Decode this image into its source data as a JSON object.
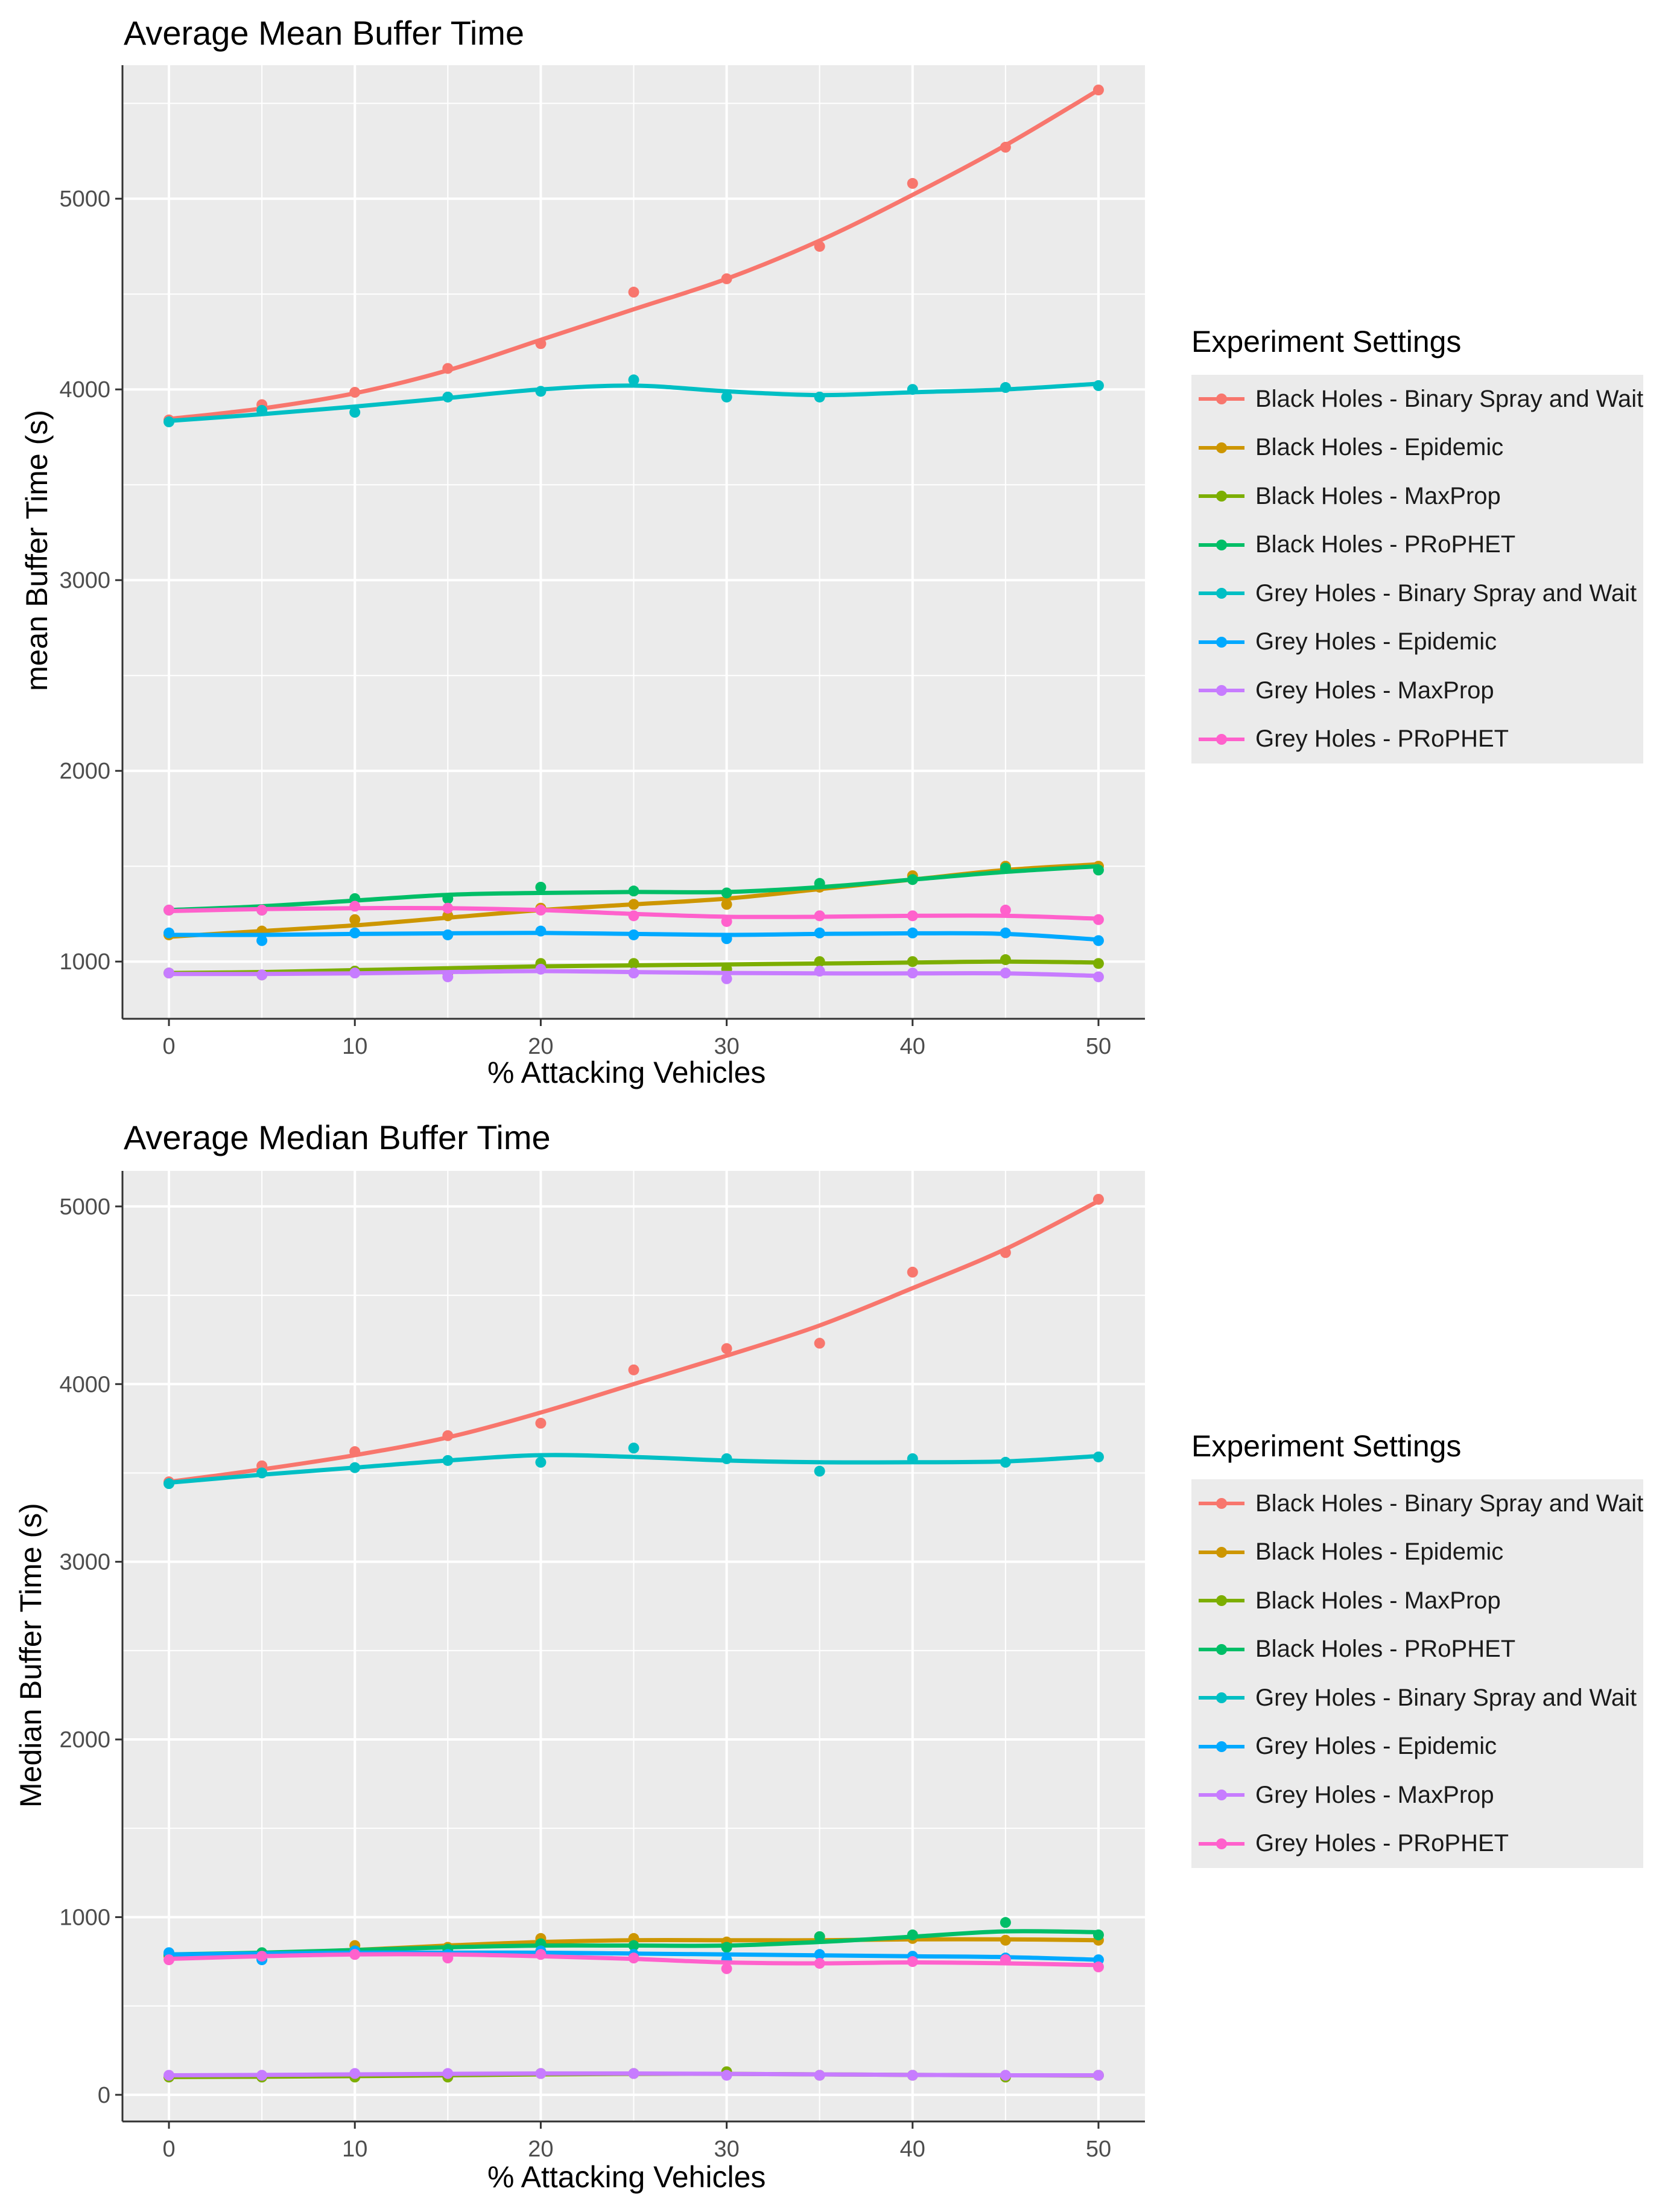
{
  "colors": {
    "series": [
      "#F8766D",
      "#CD9600",
      "#7CAE00",
      "#00BE67",
      "#00BFC4",
      "#00A9FF",
      "#C77CFF",
      "#FF61CC"
    ],
    "panel_bg": "#EBEBEB",
    "grid": "#FFFFFF"
  },
  "legend": {
    "title": "Experiment Settings",
    "labels": [
      "Black Holes - Binary Spray and Wait",
      "Black Holes - Epidemic",
      "Black Holes - MaxProp",
      "Black Holes - PRoPHET",
      "Grey Holes - Binary Spray and Wait",
      "Grey Holes - Epidemic",
      "Grey Holes - MaxProp",
      "Grey Holes - PRoPHET"
    ]
  },
  "chart_data": [
    {
      "type": "scatter",
      "title": "Average Mean Buffer Time",
      "xlabel": "% Attacking Vehicles",
      "ylabel": "mean Buffer Time (s)",
      "xlim": [
        -2.5,
        52.5
      ],
      "ylim": [
        700,
        5700
      ],
      "x_ticks": [
        0,
        10,
        20,
        30,
        40,
        50
      ],
      "x_tick_labels": [
        "0",
        "10",
        "20",
        "30",
        "40",
        "50"
      ],
      "y_ticks": [
        1000,
        2000,
        3000,
        4000,
        5000
      ],
      "y_tick_labels": [
        "1000",
        "2000",
        "3000",
        "4000",
        "5000"
      ],
      "x": [
        0,
        5,
        10,
        15,
        20,
        25,
        30,
        35,
        40,
        45,
        50
      ],
      "series": [
        {
          "name": "Black Holes - Binary Spray and Wait",
          "values": [
            3840,
            3920,
            3985,
            4110,
            4240,
            4510,
            4580,
            4750,
            5080,
            5270,
            5570
          ],
          "fit": [
            3845,
            3900,
            3980,
            4100,
            4260,
            4420,
            4580,
            4780,
            5020,
            5280,
            5570
          ]
        },
        {
          "name": "Black Holes - Epidemic",
          "values": [
            1140,
            1160,
            1220,
            1240,
            1280,
            1300,
            1300,
            1390,
            1450,
            1500,
            1500
          ],
          "fit": [
            1130,
            1160,
            1190,
            1230,
            1270,
            1300,
            1330,
            1380,
            1430,
            1480,
            1510
          ]
        },
        {
          "name": "Black Holes - MaxProp",
          "values": [
            940,
            930,
            950,
            940,
            990,
            990,
            960,
            1000,
            1000,
            1010,
            990
          ],
          "fit": [
            940,
            945,
            955,
            965,
            975,
            980,
            985,
            990,
            995,
            1000,
            995
          ]
        },
        {
          "name": "Black Holes - PRoPHET",
          "values": [
            1270,
            1270,
            1330,
            1330,
            1390,
            1370,
            1360,
            1410,
            1430,
            1490,
            1480
          ],
          "fit": [
            1270,
            1290,
            1320,
            1350,
            1360,
            1365,
            1365,
            1390,
            1430,
            1470,
            1500
          ]
        },
        {
          "name": "Grey Holes - Binary Spray and Wait",
          "values": [
            3830,
            3890,
            3880,
            3960,
            3990,
            4050,
            3960,
            3960,
            4000,
            4010,
            4020
          ],
          "fit": [
            3835,
            3870,
            3910,
            3955,
            4000,
            4020,
            3990,
            3970,
            3985,
            4000,
            4030
          ]
        },
        {
          "name": "Grey Holes - Epidemic",
          "values": [
            1150,
            1110,
            1150,
            1140,
            1160,
            1140,
            1120,
            1150,
            1150,
            1150,
            1110
          ],
          "fit": [
            1140,
            1140,
            1145,
            1148,
            1150,
            1145,
            1140,
            1145,
            1148,
            1145,
            1115
          ]
        },
        {
          "name": "Grey Holes - MaxProp",
          "values": [
            940,
            930,
            940,
            920,
            960,
            940,
            910,
            950,
            940,
            940,
            920
          ],
          "fit": [
            935,
            935,
            938,
            945,
            950,
            945,
            940,
            938,
            938,
            938,
            925
          ]
        },
        {
          "name": "Grey Holes - PRoPHET",
          "values": [
            1270,
            1270,
            1290,
            1280,
            1270,
            1240,
            1210,
            1240,
            1240,
            1270,
            1220
          ],
          "fit": [
            1265,
            1275,
            1280,
            1280,
            1270,
            1250,
            1235,
            1235,
            1240,
            1240,
            1225
          ]
        }
      ]
    },
    {
      "type": "scatter",
      "title": "Average Median Buffer Time",
      "xlabel": "% Attacking Vehicles",
      "ylabel": "Median Buffer Time (s)",
      "xlim": [
        -2.5,
        52.5
      ],
      "ylim": [
        -150,
        5200
      ],
      "x_ticks": [
        0,
        10,
        20,
        30,
        40,
        50
      ],
      "x_tick_labels": [
        "0",
        "10",
        "20",
        "30",
        "40",
        "50"
      ],
      "y_ticks": [
        0,
        1000,
        2000,
        3000,
        4000,
        5000
      ],
      "y_tick_labels": [
        "0",
        "1000",
        "2000",
        "3000",
        "4000",
        "5000"
      ],
      "x": [
        0,
        5,
        10,
        15,
        20,
        25,
        30,
        35,
        40,
        45,
        50
      ],
      "series": [
        {
          "name": "Black Holes - Binary Spray and Wait",
          "values": [
            3450,
            3540,
            3620,
            3710,
            3780,
            4080,
            4200,
            4230,
            4630,
            4740,
            5040
          ],
          "fit": [
            3450,
            3520,
            3600,
            3700,
            3840,
            4000,
            4160,
            4330,
            4540,
            4760,
            5030
          ]
        },
        {
          "name": "Black Holes - Epidemic",
          "values": [
            780,
            790,
            840,
            830,
            880,
            880,
            860,
            890,
            880,
            870,
            870
          ],
          "fit": [
            780,
            795,
            815,
            840,
            860,
            870,
            870,
            870,
            875,
            875,
            870
          ]
        },
        {
          "name": "Black Holes - MaxProp",
          "values": [
            100,
            100,
            100,
            100,
            120,
            120,
            130,
            110,
            110,
            100,
            110
          ],
          "fit": [
            100,
            102,
            105,
            110,
            115,
            118,
            118,
            115,
            112,
            110,
            108
          ]
        },
        {
          "name": "Black Holes - PRoPHET",
          "values": [
            790,
            800,
            810,
            820,
            850,
            840,
            830,
            890,
            900,
            970,
            900
          ],
          "fit": [
            790,
            800,
            815,
            830,
            840,
            840,
            840,
            860,
            890,
            920,
            915
          ]
        },
        {
          "name": "Grey Holes - Binary Spray and Wait",
          "values": [
            3440,
            3500,
            3530,
            3570,
            3560,
            3640,
            3580,
            3510,
            3580,
            3560,
            3590
          ],
          "fit": [
            3445,
            3490,
            3530,
            3570,
            3600,
            3590,
            3570,
            3560,
            3560,
            3565,
            3595
          ]
        },
        {
          "name": "Grey Holes - Epidemic",
          "values": [
            800,
            760,
            810,
            790,
            810,
            790,
            760,
            790,
            780,
            770,
            760
          ],
          "fit": [
            790,
            795,
            800,
            800,
            800,
            795,
            790,
            785,
            780,
            775,
            760
          ]
        },
        {
          "name": "Grey Holes - MaxProp",
          "values": [
            110,
            110,
            120,
            120,
            120,
            120,
            110,
            110,
            110,
            110,
            110
          ],
          "fit": [
            110,
            112,
            115,
            118,
            120,
            120,
            118,
            115,
            112,
            110,
            110
          ]
        },
        {
          "name": "Grey Holes - PRoPHET",
          "values": [
            760,
            780,
            790,
            770,
            790,
            770,
            710,
            740,
            750,
            760,
            720
          ],
          "fit": [
            765,
            780,
            790,
            790,
            780,
            765,
            745,
            740,
            745,
            740,
            730
          ]
        }
      ]
    }
  ]
}
